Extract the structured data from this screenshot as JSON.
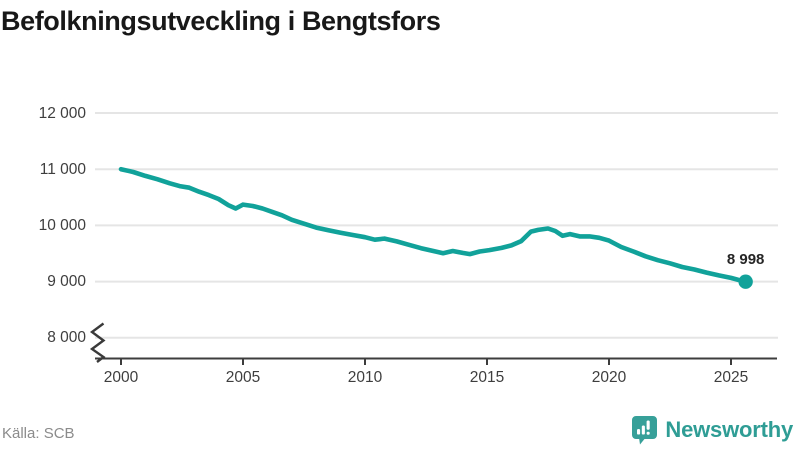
{
  "title": "Befolkningsutveckling i Bengtsfors",
  "source": "Källa: SCB",
  "branding": {
    "name": "Newsworthy",
    "icon": "newsworthy-chart-bubble",
    "color": "#37a099"
  },
  "chart_data": {
    "type": "line",
    "title": "Befolkningsutveckling i Bengtsfors",
    "xlabel": "",
    "ylabel": "",
    "grid": "horizontal",
    "axis_break_at_bottom": true,
    "line_color": "#11a29a",
    "xlim": [
      1999,
      2026.9
    ],
    "ylim": [
      8000,
      12000
    ],
    "x_ticks": [
      2000,
      2005,
      2010,
      2015,
      2020,
      2025
    ],
    "y_ticks": [
      {
        "value": 12000,
        "label": "12 000"
      },
      {
        "value": 11000,
        "label": "11 000"
      },
      {
        "value": 10000,
        "label": "10 000"
      },
      {
        "value": 9000,
        "label": "9 000"
      },
      {
        "value": 8000,
        "label": "8 000"
      }
    ],
    "annotation": {
      "label": "8 998",
      "value": 8998,
      "x": 2025.6
    },
    "end_dot": true,
    "series": [
      {
        "name": "Befolkning i Bengtsfors",
        "points": [
          [
            2000.0,
            11000
          ],
          [
            2000.5,
            10950
          ],
          [
            2001.0,
            10880
          ],
          [
            2001.5,
            10820
          ],
          [
            2002.0,
            10750
          ],
          [
            2002.4,
            10700
          ],
          [
            2002.8,
            10670
          ],
          [
            2003.2,
            10600
          ],
          [
            2003.6,
            10540
          ],
          [
            2004.0,
            10470
          ],
          [
            2004.4,
            10360
          ],
          [
            2004.7,
            10300
          ],
          [
            2005.0,
            10370
          ],
          [
            2005.4,
            10345
          ],
          [
            2005.8,
            10300
          ],
          [
            2006.2,
            10240
          ],
          [
            2006.6,
            10180
          ],
          [
            2007.0,
            10100
          ],
          [
            2007.5,
            10030
          ],
          [
            2008.0,
            9960
          ],
          [
            2008.5,
            9915
          ],
          [
            2009.0,
            9870
          ],
          [
            2009.5,
            9830
          ],
          [
            2010.0,
            9790
          ],
          [
            2010.4,
            9745
          ],
          [
            2010.8,
            9765
          ],
          [
            2011.3,
            9715
          ],
          [
            2011.8,
            9655
          ],
          [
            2012.3,
            9595
          ],
          [
            2012.8,
            9545
          ],
          [
            2013.2,
            9505
          ],
          [
            2013.6,
            9545
          ],
          [
            2014.0,
            9510
          ],
          [
            2014.3,
            9490
          ],
          [
            2014.7,
            9535
          ],
          [
            2015.1,
            9560
          ],
          [
            2015.6,
            9600
          ],
          [
            2016.0,
            9645
          ],
          [
            2016.4,
            9720
          ],
          [
            2016.8,
            9890
          ],
          [
            2017.1,
            9920
          ],
          [
            2017.5,
            9945
          ],
          [
            2017.8,
            9900
          ],
          [
            2018.1,
            9815
          ],
          [
            2018.4,
            9845
          ],
          [
            2018.8,
            9805
          ],
          [
            2019.2,
            9805
          ],
          [
            2019.6,
            9780
          ],
          [
            2020.0,
            9730
          ],
          [
            2020.5,
            9615
          ],
          [
            2021.0,
            9535
          ],
          [
            2021.5,
            9450
          ],
          [
            2022.0,
            9380
          ],
          [
            2022.5,
            9325
          ],
          [
            2023.0,
            9260
          ],
          [
            2023.5,
            9215
          ],
          [
            2024.0,
            9160
          ],
          [
            2024.5,
            9110
          ],
          [
            2025.0,
            9065
          ],
          [
            2025.3,
            9030
          ],
          [
            2025.6,
            8998
          ]
        ]
      }
    ]
  }
}
